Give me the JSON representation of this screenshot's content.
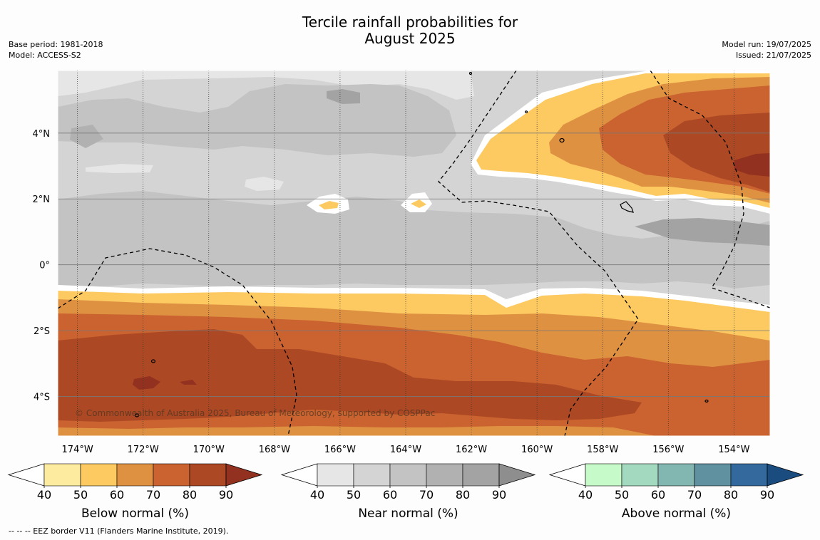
{
  "title": {
    "line1": "Tercile rainfall probabilities for",
    "line2": "August 2025"
  },
  "meta_left": {
    "base_period": "Base period: 1981-2018",
    "model": "Model: ACCESS-S2"
  },
  "meta_right": {
    "model_run": "Model run: 19/07/2025",
    "issued": "Issued: 21/07/2025"
  },
  "map": {
    "lon_range": [
      -174.6,
      -152.9
    ],
    "lat_range": [
      -5.2,
      5.9
    ],
    "lon_ticks": [
      -174,
      -172,
      -170,
      -168,
      -166,
      -164,
      -162,
      -160,
      -158,
      -156,
      -154
    ],
    "lat_ticks": [
      4,
      2,
      0,
      -2,
      -4
    ],
    "lon_tick_labels": [
      "174°W",
      "172°W",
      "170°W",
      "168°W",
      "166°W",
      "164°W",
      "162°W",
      "160°W",
      "158°W",
      "156°W",
      "154°W"
    ],
    "lat_tick_labels": [
      "4°N",
      "2°N",
      "0°",
      "2°S",
      "4°S"
    ],
    "copyright": "© Commonwealth of Australia 2025, Bureau of Meteorology, supported by COSPPac"
  },
  "colorbars": [
    {
      "label": "Below normal (%)",
      "ticks": [
        "40",
        "50",
        "60",
        "70",
        "80",
        "90"
      ],
      "colors": [
        "#ffffff",
        "#fdeb9f",
        "#fdca62",
        "#df9142",
        "#ca6330",
        "#ad4824",
        "#923120"
      ]
    },
    {
      "label": "Near normal (%)",
      "ticks": [
        "40",
        "50",
        "60",
        "70",
        "80",
        "90"
      ],
      "colors": [
        "#ffffff",
        "#e6e6e6",
        "#d4d4d4",
        "#c3c3c3",
        "#b1b1b1",
        "#a3a3a3",
        "#8e8e8e"
      ]
    },
    {
      "label": "Above normal (%)",
      "ticks": [
        "40",
        "50",
        "60",
        "70",
        "80",
        "90"
      ],
      "colors": [
        "#ffffff",
        "#c6fbc9",
        "#a3d9bf",
        "#82b6b1",
        "#5f91a0",
        "#33699c",
        "#1a4c80"
      ]
    }
  ],
  "footnote": "--  --  -- EEZ border V11 (Flanders Marine Institute, 2019)."
}
